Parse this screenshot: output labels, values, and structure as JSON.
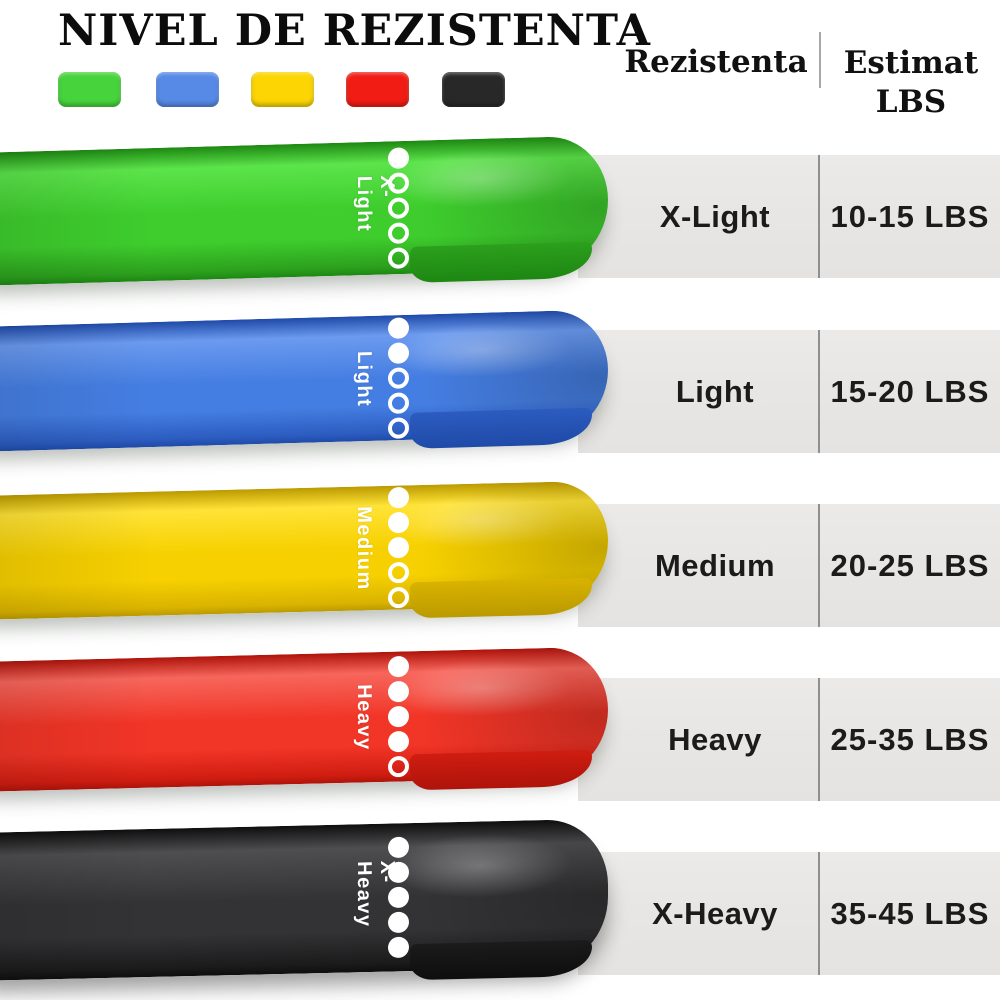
{
  "title": "NIVEL DE REZISTENTA",
  "legend_swatches": [
    {
      "name": "green",
      "color": "#47d33c"
    },
    {
      "name": "blue",
      "color": "#568ae6"
    },
    {
      "name": "yellow",
      "color": "#fcd503"
    },
    {
      "name": "red",
      "color": "#f11d15"
    },
    {
      "name": "black",
      "color": "#282829"
    }
  ],
  "table": {
    "header": {
      "resistance": "Rezistenta",
      "estimate_line1": "Estimat",
      "estimate_line2": "LBS"
    },
    "rows": [
      {
        "level": "X-Light",
        "lbs": "10-15 LBS"
      },
      {
        "level": "Light",
        "lbs": "15-20 LBS"
      },
      {
        "level": "Medium",
        "lbs": "20-25 LBS"
      },
      {
        "level": "Heavy",
        "lbs": "25-35 LBS"
      },
      {
        "level": "X-Heavy",
        "lbs": "35-45 LBS"
      }
    ]
  },
  "bands": [
    {
      "level": "X-Light",
      "dots_filled": 1,
      "dots_total": 5,
      "colors": {
        "face": "#3ecd2d",
        "light": "#5ce44b",
        "dark": "#2ca01d",
        "edge": "#1d8712"
      }
    },
    {
      "level": "Light",
      "dots_filled": 2,
      "dots_total": 5,
      "colors": {
        "face": "#457ee2",
        "light": "#6b9aef",
        "dark": "#2c5cc0",
        "edge": "#1f4aa8"
      }
    },
    {
      "level": "Medium",
      "dots_filled": 3,
      "dots_total": 5,
      "colors": {
        "face": "#f6d000",
        "light": "#ffe337",
        "dark": "#d9b300",
        "edge": "#bb9a00"
      }
    },
    {
      "level": "Heavy",
      "dots_filled": 4,
      "dots_total": 5,
      "colors": {
        "face": "#f13527",
        "light": "#f7665c",
        "dark": "#d01d11",
        "edge": "#ae130a"
      }
    },
    {
      "level": "X-Heavy",
      "dots_filled": 5,
      "dots_total": 5,
      "colors": {
        "face": "#333335",
        "light": "#4e4e50",
        "dark": "#1b1b1c",
        "edge": "#0e0e0f"
      }
    }
  ]
}
